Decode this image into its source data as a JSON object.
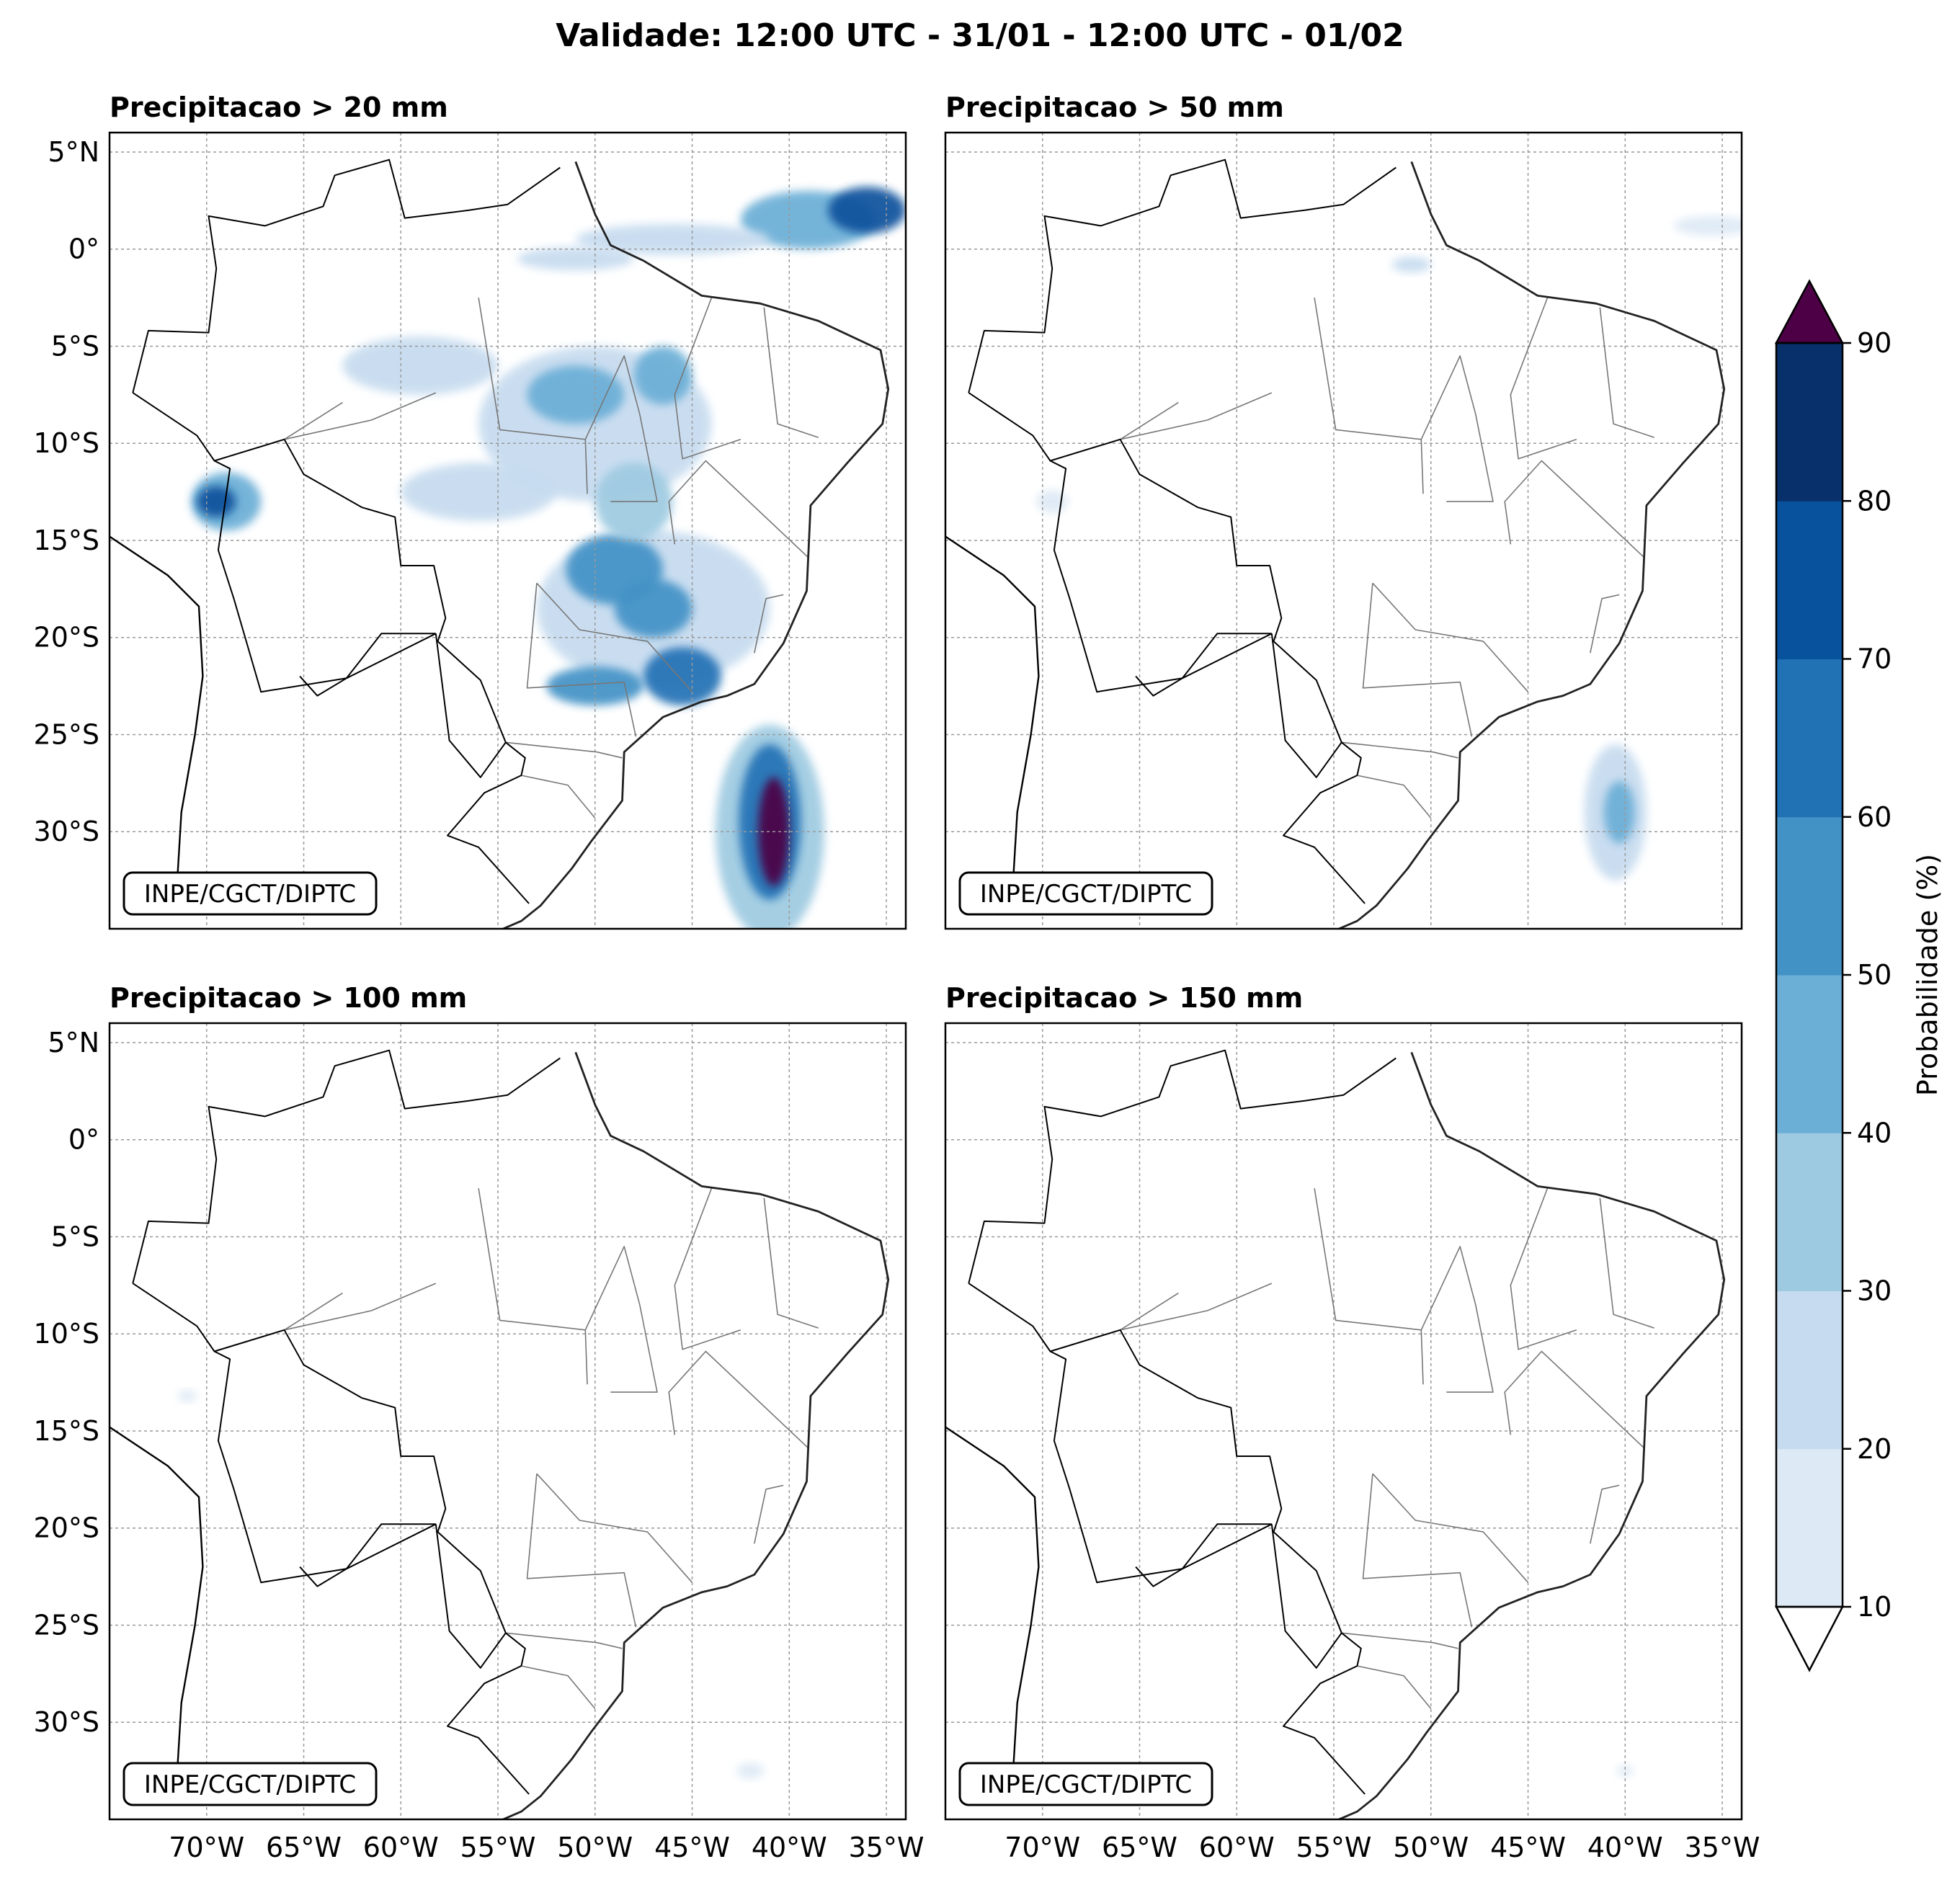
{
  "figure": {
    "title": "Validade: 12:00 UTC - 31/01 - 12:00 UTC - 01/02"
  },
  "panels": [
    {
      "title": "Precipitacao > 20 mm",
      "credit": "INPE/CGCT/DIPTC"
    },
    {
      "title": "Precipitacao > 50 mm",
      "credit": "INPE/CGCT/DIPTC"
    },
    {
      "title": "Precipitacao > 100 mm",
      "credit": "INPE/CGCT/DIPTC"
    },
    {
      "title": "Precipitacao > 150 mm",
      "credit": "INPE/CGCT/DIPTC"
    }
  ],
  "axes": {
    "lat_labels": [
      "5°N",
      "0°",
      "5°S",
      "10°S",
      "15°S",
      "20°S",
      "25°S",
      "30°S"
    ],
    "lat_values": [
      5,
      0,
      -5,
      -10,
      -15,
      -20,
      -25,
      -30
    ],
    "lon_labels": [
      "70°W",
      "65°W",
      "60°W",
      "55°W",
      "50°W",
      "45°W",
      "40°W",
      "35°W"
    ],
    "lon_values": [
      -70,
      -65,
      -60,
      -55,
      -50,
      -45,
      -40,
      -35
    ],
    "lon_range": [
      -75,
      -34
    ],
    "lat_range": [
      -35,
      6
    ],
    "grid": true
  },
  "colorbar": {
    "label": "Probabilidade (%)",
    "ticks": [
      "10",
      "20",
      "30",
      "40",
      "50",
      "60",
      "70",
      "80",
      "90"
    ],
    "colors": [
      "#dde9f5",
      "#c6dbef",
      "#9ecae1",
      "#6baed6",
      "#4292c6",
      "#2171b5",
      "#08519c",
      "#08306b"
    ],
    "over_color": "#4d0045",
    "under_color": "#ffffff",
    "extend": "both"
  },
  "chart_data": {
    "type": "heatmap",
    "variable": "Probabilidade (%)",
    "levels": [
      10,
      20,
      30,
      40,
      50,
      60,
      70,
      80,
      90
    ],
    "fields": [
      {
        "title": "Precipitacao > 20 mm",
        "blobs": [
          {
            "lon": -39,
            "lat": 1.5,
            "rlon": 3.5,
            "rlat": 1.5,
            "level": 3
          },
          {
            "lon": -36,
            "lat": 2,
            "rlon": 2,
            "rlat": 1.2,
            "level": 6
          },
          {
            "lon": -46,
            "lat": 0.5,
            "rlon": 5,
            "rlat": 0.8,
            "level": 1
          },
          {
            "lon": -51,
            "lat": -0.5,
            "rlon": 3,
            "rlat": 0.6,
            "level": 1
          },
          {
            "lon": -69,
            "lat": -13,
            "rlon": 1.8,
            "rlat": 1.5,
            "level": 3
          },
          {
            "lon": -69.5,
            "lat": -13,
            "rlon": 1,
            "rlat": 0.8,
            "level": 6
          },
          {
            "lon": -47,
            "lat": -18.5,
            "rlon": 6,
            "rlat": 4,
            "level": 1
          },
          {
            "lon": -49,
            "lat": -16.5,
            "rlon": 2.5,
            "rlat": 1.8,
            "level": 4
          },
          {
            "lon": -47,
            "lat": -18.5,
            "rlon": 2,
            "rlat": 1.5,
            "level": 4
          },
          {
            "lon": -45.5,
            "lat": -22,
            "rlon": 2,
            "rlat": 1.5,
            "level": 5
          },
          {
            "lon": -50,
            "lat": -22.5,
            "rlon": 2.5,
            "rlat": 1,
            "level": 4
          },
          {
            "lon": -50,
            "lat": -9,
            "rlon": 6,
            "rlat": 4,
            "level": 1
          },
          {
            "lon": -51,
            "lat": -7.5,
            "rlon": 2.5,
            "rlat": 1.5,
            "level": 3
          },
          {
            "lon": -46.5,
            "lat": -6.5,
            "rlon": 1.5,
            "rlat": 1.5,
            "level": 3
          },
          {
            "lon": -59,
            "lat": -6,
            "rlon": 4,
            "rlat": 1.5,
            "level": 1
          },
          {
            "lon": -56,
            "lat": -12.5,
            "rlon": 4,
            "rlat": 1.5,
            "level": 1
          },
          {
            "lon": -48,
            "lat": -13,
            "rlon": 2,
            "rlat": 2,
            "level": 2
          },
          {
            "lon": -41,
            "lat": -30,
            "rlon": 2.8,
            "rlat": 5.5,
            "level": 2
          },
          {
            "lon": -41,
            "lat": -29.5,
            "rlon": 1.6,
            "rlat": 4,
            "level": 5
          },
          {
            "lon": -40.8,
            "lat": -30,
            "rlon": 0.8,
            "rlat": 2.8,
            "level": 8
          }
        ]
      },
      {
        "title": "Precipitacao > 50 mm",
        "blobs": [
          {
            "lon": -40.5,
            "lat": -29,
            "rlon": 1.6,
            "rlat": 3.5,
            "level": 1
          },
          {
            "lon": -40.3,
            "lat": -29,
            "rlon": 0.8,
            "rlat": 1.6,
            "level": 3
          },
          {
            "lon": -35.5,
            "lat": 1.2,
            "rlon": 2,
            "rlat": 0.5,
            "level": 0
          },
          {
            "lon": -51,
            "lat": -0.8,
            "rlon": 1,
            "rlat": 0.4,
            "level": 1
          },
          {
            "lon": -69.5,
            "lat": -13,
            "rlon": 0.8,
            "rlat": 0.6,
            "level": 0
          }
        ]
      },
      {
        "title": "Precipitacao > 100 mm",
        "blobs": [
          {
            "lon": -42,
            "lat": -32.5,
            "rlon": 0.7,
            "rlat": 0.4,
            "level": 0
          },
          {
            "lon": -71,
            "lat": -13.2,
            "rlon": 0.5,
            "rlat": 0.3,
            "level": 0
          }
        ]
      },
      {
        "title": "Precipitacao > 150 mm",
        "blobs": [
          {
            "lon": -40,
            "lat": -32.5,
            "rlon": 0.4,
            "rlat": 0.3,
            "level": 0
          }
        ]
      }
    ]
  }
}
